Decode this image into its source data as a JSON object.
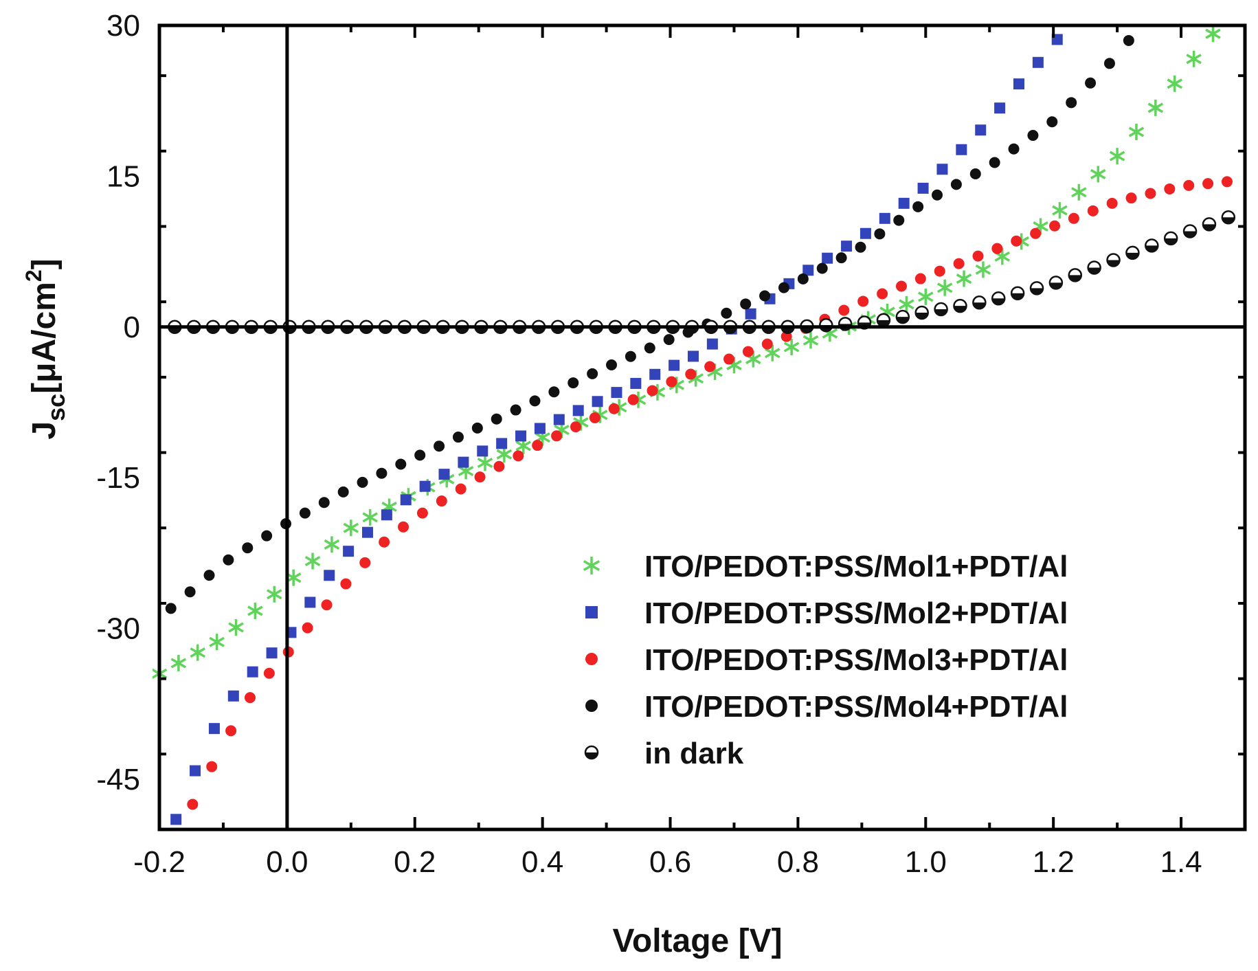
{
  "chart_data": {
    "type": "scatter",
    "title": "",
    "xlabel": "Voltage [V]",
    "ylabel": "J",
    "ylabel_sub": "sc",
    "ylabel_unit": "[μA/cm",
    "ylabel_sup": "2",
    "ylabel_close": "]",
    "xlim": [
      -0.2,
      1.5
    ],
    "ylim": [
      -50,
      30
    ],
    "xticks": [
      -0.2,
      0.0,
      0.2,
      0.4,
      0.6,
      0.8,
      1.0,
      1.2,
      1.4
    ],
    "xtick_labels": [
      "-0.2",
      "0.0",
      "0.2",
      "0.4",
      "0.6",
      "0.8",
      "1.0",
      "1.2",
      "1.4"
    ],
    "yticks": [
      -45,
      -30,
      -15,
      0,
      15,
      30
    ],
    "ytick_labels": [
      "-45",
      "-30",
      "-15",
      "0",
      "15",
      "30"
    ],
    "grid": false,
    "legend_position": "lower-right",
    "series": [
      {
        "name": "ITO/PEDOT:PSS/Mol1+PDT/Al",
        "marker": "star",
        "color": "#5fd35a",
        "x": [
          -0.2,
          -0.1,
          0.0,
          0.1,
          0.2,
          0.3,
          0.4,
          0.5,
          0.6,
          0.7,
          0.8,
          0.9,
          1.0,
          1.1,
          1.2,
          1.3,
          1.4,
          1.46
        ],
        "y": [
          -34.5,
          -31.0,
          -25.5,
          -20.0,
          -16.5,
          -13.8,
          -11.0,
          -8.5,
          -6.0,
          -3.8,
          -1.8,
          0.5,
          3.0,
          6.0,
          11.0,
          17.0,
          25.0,
          30.0
        ]
      },
      {
        "name": "ITO/PEDOT:PSS/Mol2+PDT/Al",
        "marker": "square",
        "color": "#3344bb",
        "x": [
          -0.18,
          -0.15,
          -0.1,
          -0.05,
          0.0,
          0.05,
          0.1,
          0.15,
          0.2,
          0.3,
          0.4,
          0.5,
          0.6,
          0.65,
          0.7,
          0.8,
          0.9,
          1.0,
          1.1,
          1.15,
          1.2,
          1.22
        ],
        "y": [
          -50.0,
          -45.0,
          -38.0,
          -34.0,
          -31.0,
          -26.0,
          -22.0,
          -19.0,
          -16.5,
          -12.5,
          -10.0,
          -7.0,
          -4.0,
          -2.5,
          0.0,
          5.0,
          9.0,
          14.0,
          20.5,
          24.5,
          28.0,
          30.0
        ]
      },
      {
        "name": "ITO/PEDOT:PSS/Mol3+PDT/Al",
        "marker": "circle",
        "color": "#ee2222",
        "x": [
          -0.16,
          -0.1,
          -0.05,
          0.0,
          0.05,
          0.1,
          0.15,
          0.2,
          0.3,
          0.4,
          0.5,
          0.6,
          0.7,
          0.8,
          0.9,
          1.0,
          1.1,
          1.2,
          1.3,
          1.4,
          1.48
        ],
        "y": [
          -49.0,
          -41.5,
          -36.0,
          -32.5,
          -28.5,
          -25.0,
          -21.5,
          -19.0,
          -15.0,
          -11.5,
          -8.5,
          -5.5,
          -3.0,
          -0.5,
          2.5,
          5.0,
          7.5,
          10.0,
          12.5,
          14.0,
          14.5
        ]
      },
      {
        "name": "ITO/PEDOT:PSS/Mol4+PDT/Al",
        "marker": "circle",
        "color": "#111111",
        "x": [
          -0.2,
          -0.1,
          0.0,
          0.1,
          0.2,
          0.3,
          0.4,
          0.5,
          0.6,
          0.65,
          0.7,
          0.8,
          0.9,
          1.0,
          1.1,
          1.2,
          1.3,
          1.33
        ],
        "y": [
          -29.0,
          -23.5,
          -19.5,
          -16.0,
          -13.0,
          -10.0,
          -7.0,
          -4.0,
          -1.2,
          0.0,
          1.8,
          4.5,
          8.0,
          12.5,
          16.0,
          20.5,
          27.0,
          29.5
        ]
      },
      {
        "name": "in dark",
        "marker": "half-circle",
        "color": "#111111",
        "x": [
          -0.2,
          -0.1,
          0.0,
          0.1,
          0.2,
          0.3,
          0.4,
          0.5,
          0.6,
          0.7,
          0.8,
          0.85,
          0.9,
          0.95,
          1.0,
          1.1,
          1.2,
          1.3,
          1.4,
          1.5
        ],
        "y": [
          0.0,
          0.0,
          0.0,
          0.0,
          0.0,
          0.0,
          0.0,
          0.0,
          0.0,
          0.0,
          0.0,
          0.2,
          0.4,
          0.8,
          1.5,
          2.6,
          4.3,
          6.8,
          9.2,
          11.5
        ]
      }
    ]
  }
}
